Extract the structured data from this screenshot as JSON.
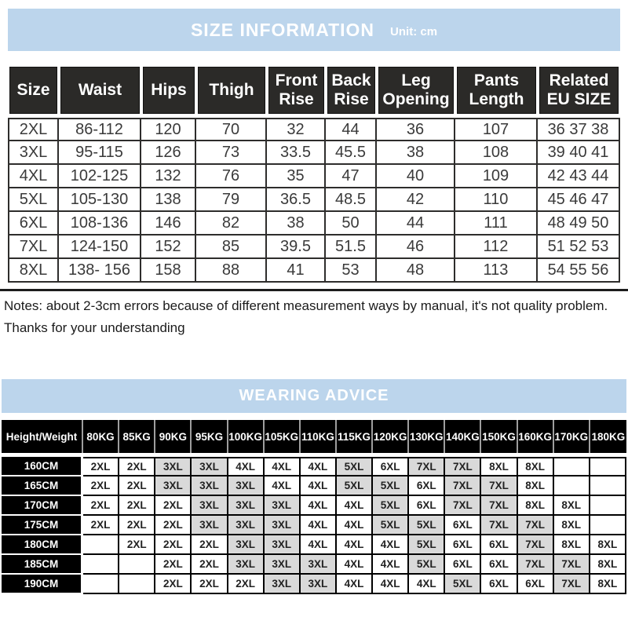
{
  "size_info": {
    "title": "SIZE INFORMATION",
    "unit": "Unit: cm",
    "table": {
      "headers": [
        "Size",
        "Waist",
        "Hips",
        "Thigh",
        "Front Rise",
        "Back Rise",
        "Leg Opening",
        "Pants Length",
        "Related EU SIZE"
      ],
      "rows": [
        [
          "2XL",
          "86-112",
          "120",
          "70",
          "32",
          "44",
          "36",
          "107",
          "36 37 38"
        ],
        [
          "3XL",
          "95-115",
          "126",
          "73",
          "33.5",
          "45.5",
          "38",
          "108",
          "39 40 41"
        ],
        [
          "4XL",
          "102-125",
          "132",
          "76",
          "35",
          "47",
          "40",
          "109",
          "42 43 44"
        ],
        [
          "5XL",
          "105-130",
          "138",
          "79",
          "36.5",
          "48.5",
          "42",
          "110",
          "45 46 47"
        ],
        [
          "6XL",
          "108-136",
          "146",
          "82",
          "38",
          "50",
          "44",
          "111",
          "48 49 50"
        ],
        [
          "7XL",
          "124-150",
          "152",
          "85",
          "39.5",
          "51.5",
          "46",
          "112",
          "51 52 53"
        ],
        [
          "8XL",
          "138- 156",
          "158",
          "88",
          "41",
          "53",
          "48",
          "113",
          "54 55 56"
        ]
      ]
    }
  },
  "notes": {
    "line1": "Notes: about 2-3cm errors because of different measurement ways by manual, it's not quality problem.",
    "line2": "Thanks for your understanding"
  },
  "wearing_advice": {
    "title": "WEARING ADVICE",
    "table": {
      "corner": "Height/Weight",
      "weights": [
        "80KG",
        "85KG",
        "90KG",
        "95KG",
        "100KG",
        "105KG",
        "110KG",
        "115KG",
        "120KG",
        "130KG",
        "140KG",
        "150KG",
        "160KG",
        "170KG",
        "180KG"
      ],
      "rows": [
        {
          "height": "160CM",
          "sizes": [
            "2XL",
            "2XL",
            "3XL",
            "3XL",
            "4XL",
            "4XL",
            "4XL",
            "5XL",
            "6XL",
            "7XL",
            "7XL",
            "8XL",
            "8XL",
            "",
            ""
          ]
        },
        {
          "height": "165CM",
          "sizes": [
            "2XL",
            "2XL",
            "3XL",
            "3XL",
            "3XL",
            "4XL",
            "4XL",
            "5XL",
            "5XL",
            "6XL",
            "7XL",
            "7XL",
            "8XL",
            "",
            ""
          ]
        },
        {
          "height": "170CM",
          "sizes": [
            "2XL",
            "2XL",
            "2XL",
            "3XL",
            "3XL",
            "3XL",
            "4XL",
            "4XL",
            "5XL",
            "6XL",
            "7XL",
            "7XL",
            "8XL",
            "8XL",
            ""
          ]
        },
        {
          "height": "175CM",
          "sizes": [
            "2XL",
            "2XL",
            "2XL",
            "3XL",
            "3XL",
            "3XL",
            "4XL",
            "4XL",
            "5XL",
            "5XL",
            "6XL",
            "7XL",
            "7XL",
            "8XL",
            ""
          ]
        },
        {
          "height": "180CM",
          "sizes": [
            "",
            "2XL",
            "2XL",
            "2XL",
            "3XL",
            "3XL",
            "4XL",
            "4XL",
            "4XL",
            "5XL",
            "6XL",
            "6XL",
            "7XL",
            "8XL",
            "8XL"
          ]
        },
        {
          "height": "185CM",
          "sizes": [
            "",
            "",
            "2XL",
            "2XL",
            "3XL",
            "3XL",
            "3XL",
            "4XL",
            "4XL",
            "5XL",
            "6XL",
            "6XL",
            "7XL",
            "7XL",
            "8XL"
          ]
        },
        {
          "height": "190CM",
          "sizes": [
            "",
            "",
            "2XL",
            "2XL",
            "2XL",
            "3XL",
            "3XL",
            "4XL",
            "4XL",
            "4XL",
            "5XL",
            "6XL",
            "6XL",
            "7XL",
            "8XL"
          ]
        }
      ]
    }
  },
  "colors": {
    "band_blue": "#bcd5ec",
    "header_dark": "#2b2a28",
    "cell_gray": "#d9d9d9",
    "text_dark": "#3a3a3a"
  }
}
